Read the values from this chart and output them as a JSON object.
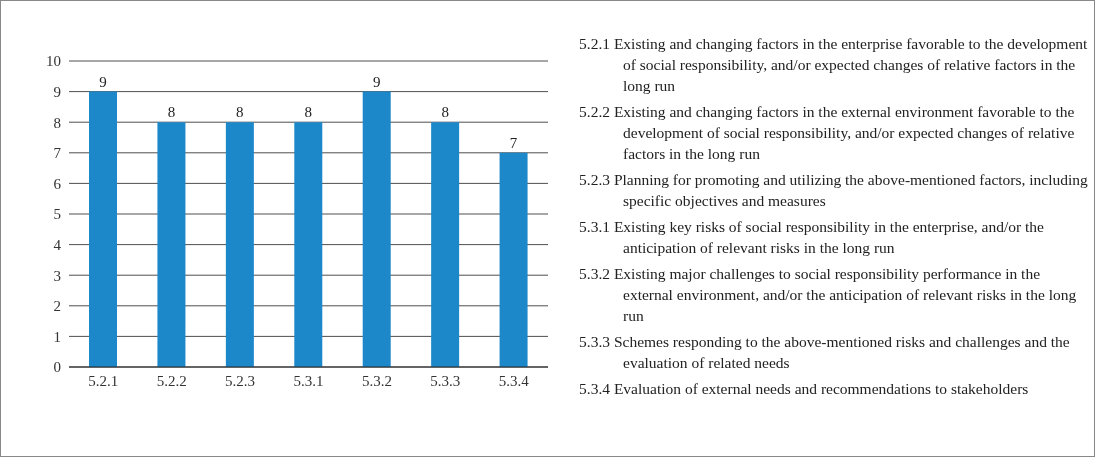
{
  "chart_data": {
    "type": "bar",
    "categories": [
      "5.2.1",
      "5.2.2",
      "5.2.3",
      "5.3.1",
      "5.3.2",
      "5.3.3",
      "5.3.4"
    ],
    "values": [
      9,
      8,
      8,
      8,
      9,
      8,
      7
    ],
    "color": "#1c87c9",
    "ylim": [
      0,
      10
    ],
    "yticks": [
      0,
      1,
      2,
      3,
      4,
      5,
      6,
      7,
      8,
      9,
      10
    ],
    "grid": "y",
    "data_labels": true,
    "legend": false,
    "annotations": [
      "5.2.1 Existing and changing factors in the enterprise favorable to the development of social responsibility, and/or expected changes of relative factors in the long run",
      "5.2.2 Existing and changing factors in the external environment favorable to the development of social responsibility, and/or expected changes of relative factors in the long run",
      "5.2.3 Planning for promoting and utilizing the above-mentioned factors, including specific objectives and measures",
      "5.3.1 Existing key risks of social responsibility in the enterprise, and/or the anticipation of relevant risks in the long run",
      "5.3.2 Existing major challenges to social responsibility performance in the external environment, and/or the anticipation of relevant risks in the long run",
      "5.3.3 Schemes responding to the above-mentioned risks and challenges and the evaluation of related needs",
      "5.3.4 Evaluation of external needs and recommendations to stakeholders"
    ]
  }
}
